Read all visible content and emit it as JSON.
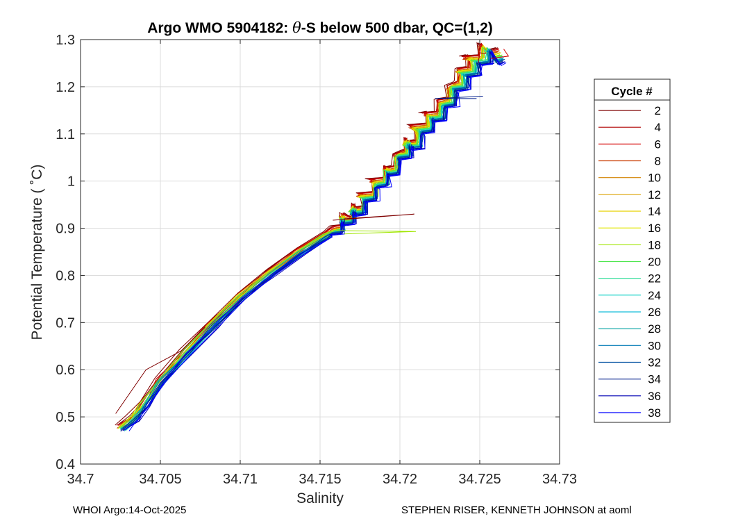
{
  "chart_data": {
    "type": "line",
    "title_prefix": "Argo WMO 5904182: ",
    "title_theta": "θ",
    "title_suffix": "-S below 500 dbar,  QC=(1,2)",
    "xlabel": "Salinity",
    "ylabel": "Potential Temperature ( ˚C)",
    "xlim": [
      34.7,
      34.73
    ],
    "ylim": [
      0.4,
      1.3
    ],
    "x_ticks": [
      34.7,
      34.705,
      34.71,
      34.715,
      34.72,
      34.725,
      34.73
    ],
    "x_tick_labels": [
      "34.7",
      "34.705",
      "34.71",
      "34.715",
      "34.72",
      "34.725",
      "34.73"
    ],
    "y_ticks": [
      0.4,
      0.5,
      0.6,
      0.7,
      0.8,
      0.9,
      1.0,
      1.1,
      1.2,
      1.3
    ],
    "y_tick_labels": [
      "0.4",
      "0.5",
      "0.6",
      "0.7",
      "0.8",
      "0.9",
      "1",
      "1.1",
      "1.2",
      "1.3"
    ],
    "grid": true,
    "legend": {
      "title": "Cycle #",
      "placement": "outside-right",
      "entries": [
        {
          "label": "2",
          "color": "#7f0000"
        },
        {
          "label": "4",
          "color": "#b00000"
        },
        {
          "label": "6",
          "color": "#d40000"
        },
        {
          "label": "8",
          "color": "#c83c00"
        },
        {
          "label": "10",
          "color": "#d28200"
        },
        {
          "label": "12",
          "color": "#dca000"
        },
        {
          "label": "14",
          "color": "#e6d200"
        },
        {
          "label": "16",
          "color": "#e0e600"
        },
        {
          "label": "18",
          "color": "#a0e600"
        },
        {
          "label": "20",
          "color": "#50e650"
        },
        {
          "label": "22",
          "color": "#28dc96"
        },
        {
          "label": "24",
          "color": "#14d2c8"
        },
        {
          "label": "26",
          "color": "#14beda"
        },
        {
          "label": "28",
          "color": "#00a0a0"
        },
        {
          "label": "30",
          "color": "#0078b4"
        },
        {
          "label": "32",
          "color": "#0050a0"
        },
        {
          "label": "34",
          "color": "#001e8c"
        },
        {
          "label": "36",
          "color": "#0000b4"
        },
        {
          "label": "38",
          "color": "#0000ff"
        }
      ]
    }
  },
  "footer": {
    "left": "WHOI Argo:14-Oct-2025",
    "right": "STEPHEN RISER, KENNETH JOHNSON at aoml"
  }
}
